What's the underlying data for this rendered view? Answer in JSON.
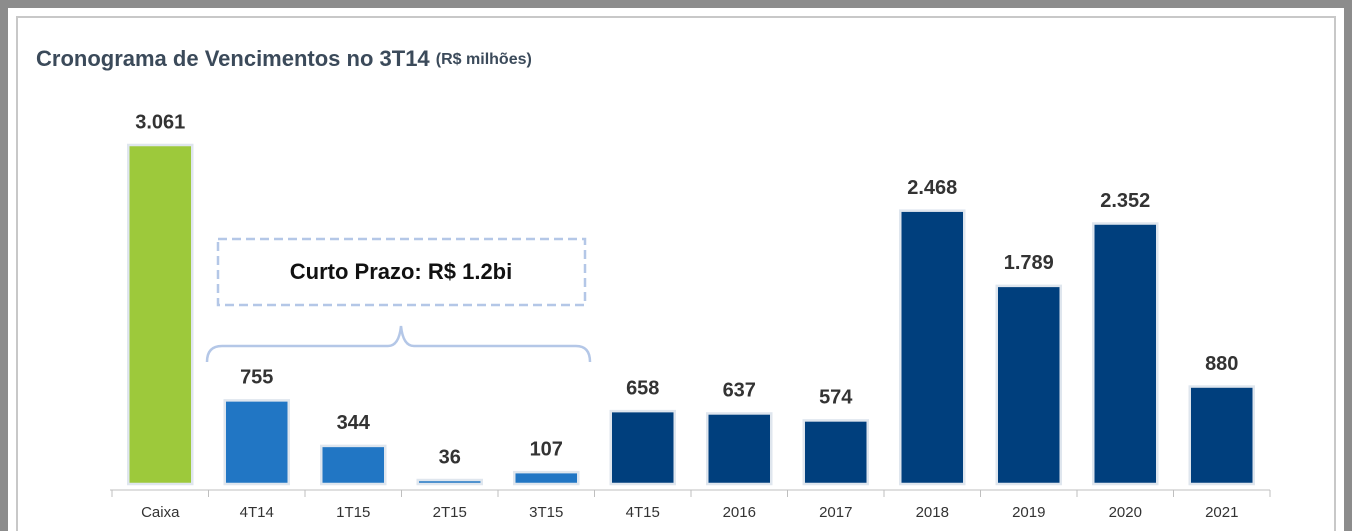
{
  "chart_data": {
    "type": "bar",
    "title": "Cronograma de Vencimentos no 3T14",
    "subtitle": "(R$ milhões)",
    "annotation": "Curto Prazo: R$ 1.2bi",
    "categories": [
      "Caixa",
      "4T14",
      "1T15",
      "2T15",
      "3T15",
      "4T15",
      "2016",
      "2017",
      "2018",
      "2019",
      "2020",
      "2021"
    ],
    "values": [
      3061,
      755,
      344,
      36,
      107,
      658,
      637,
      574,
      2468,
      1789,
      2352,
      880
    ],
    "value_labels": [
      "3.061",
      "755",
      "344",
      "36",
      "107",
      "658",
      "637",
      "574",
      "2.468",
      "1.789",
      "2.352",
      "880"
    ],
    "colors": [
      "#9dc93b",
      "#2176c4",
      "#2176c4",
      "#2176c4",
      "#2176c4",
      "#003f7d",
      "#003f7d",
      "#003f7d",
      "#003f7d",
      "#003f7d",
      "#003f7d",
      "#003f7d"
    ]
  }
}
